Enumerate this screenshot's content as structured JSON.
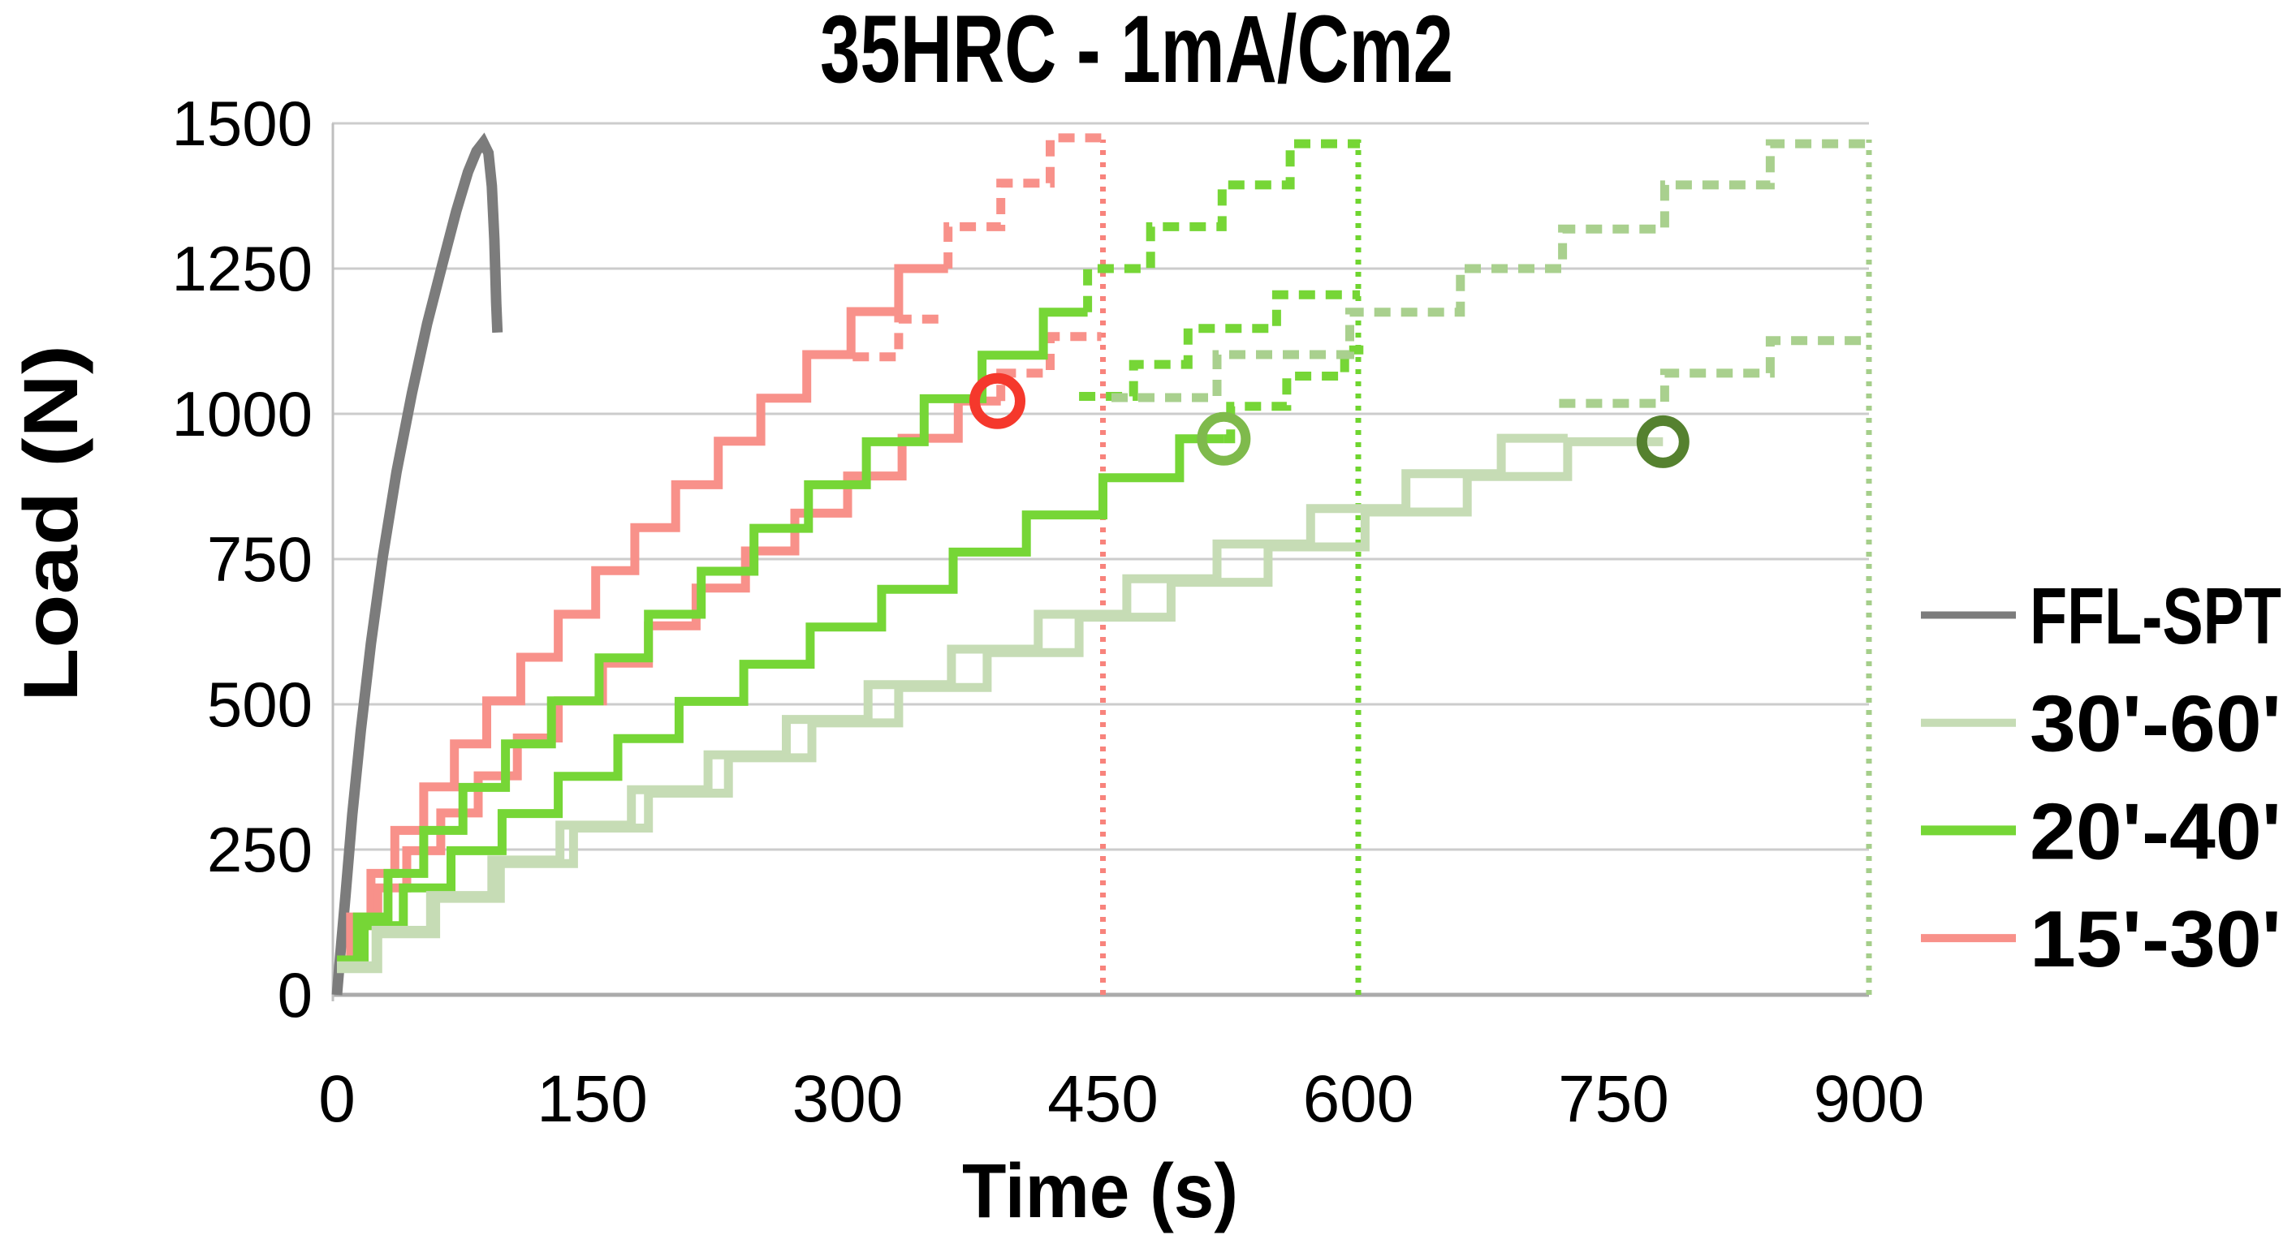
{
  "title": "35HRC - 1mA/Cm2",
  "chart_data": {
    "type": "line",
    "title": "35HRC - 1mA/Cm2",
    "xlabel": "Time (s)",
    "ylabel": "Load (N)",
    "xlim": [
      0,
      900
    ],
    "ylim": [
      0,
      1500
    ],
    "x_ticks": [
      0,
      150,
      300,
      450,
      600,
      750,
      900
    ],
    "y_ticks": [
      0,
      250,
      500,
      750,
      1000,
      1250,
      1500
    ],
    "grid": true,
    "legend_position": "right",
    "colors": {
      "ffl": "#7C7C7C",
      "salmon": "#F8918A",
      "vivid_green": "#76D636",
      "pale_green_solid": "#C6DCB5",
      "pale_green_dash": "#A9D08E",
      "red_circle": "#F5382C",
      "mid_green_circle": "#7FBA4C",
      "dark_green_circle": "#55812F",
      "red_dotted": "#F8837C",
      "green_dotted": "#6FD52F",
      "pale_dotted": "#A5CE8A",
      "gridline": "#CCCCCC",
      "axis": "#ABABAB"
    },
    "series": [
      {
        "name": "FFL-SPT",
        "mode": "line",
        "dash": false,
        "color": "#7C7C7C",
        "width": 13,
        "points": [
          [
            0,
            0
          ],
          [
            2,
            70
          ],
          [
            5,
            170
          ],
          [
            9,
            310
          ],
          [
            14,
            455
          ],
          [
            20,
            605
          ],
          [
            27,
            755
          ],
          [
            35,
            900
          ],
          [
            44,
            1035
          ],
          [
            53,
            1155
          ],
          [
            62,
            1258
          ],
          [
            70,
            1348
          ],
          [
            77,
            1416
          ],
          [
            82,
            1452
          ],
          [
            86,
            1467
          ],
          [
            89,
            1449
          ],
          [
            91,
            1392
          ],
          [
            92.5,
            1300
          ],
          [
            93.6,
            1190
          ],
          [
            94.3,
            1140
          ]
        ]
      },
      {
        "name": "15-30 test A solid",
        "mode": "steps",
        "dash": false,
        "color": "#F8918A",
        "width": 11,
        "end": 359,
        "points": [
          [
            0,
            60
          ],
          [
            8,
            134
          ],
          [
            20,
            209
          ],
          [
            34,
            283
          ],
          [
            51,
            358
          ],
          [
            69,
            432
          ],
          [
            88,
            506
          ],
          [
            108,
            581
          ],
          [
            130,
            655
          ],
          [
            152,
            730
          ],
          [
            175,
            804
          ],
          [
            199,
            878
          ],
          [
            224,
            953
          ],
          [
            249,
            1027
          ],
          [
            276,
            1102
          ],
          [
            302,
            1176
          ],
          [
            330,
            1250
          ]
        ]
      },
      {
        "name": "15-30 test A projection",
        "mode": "steps",
        "dash": true,
        "color": "#F8918A",
        "width": 11,
        "end": 449,
        "points": [
          [
            359,
            1250
          ],
          [
            359,
            1322
          ],
          [
            390,
            1397
          ],
          [
            419,
            1475
          ]
        ]
      },
      {
        "name": "15-30 test B solid",
        "mode": "steps",
        "dash": false,
        "color": "#F8918A",
        "width": 11,
        "end": 390,
        "points": [
          [
            0,
            55
          ],
          [
            9,
            119
          ],
          [
            24,
            184
          ],
          [
            41,
            248
          ],
          [
            61,
            313
          ],
          [
            83,
            377
          ],
          [
            106,
            442
          ],
          [
            130,
            506
          ],
          [
            156,
            571
          ],
          [
            183,
            635
          ],
          [
            211,
            700
          ],
          [
            240,
            764
          ],
          [
            269,
            829
          ],
          [
            300,
            893
          ],
          [
            332,
            958
          ],
          [
            365,
            1022
          ]
        ]
      },
      {
        "name": "15-30 test B projection",
        "mode": "steps",
        "dash": true,
        "color": "#F8918A",
        "width": 11,
        "end": 449,
        "points": [
          [
            390,
            1022
          ],
          [
            390,
            1070
          ],
          [
            419,
            1133
          ]
        ]
      },
      {
        "name": "15-30 protocol fragment",
        "mode": "steps",
        "dash": true,
        "color": "#F8918A",
        "width": 11,
        "end": 359,
        "points": [
          [
            303,
            1098
          ],
          [
            330,
            1163
          ]
        ]
      },
      {
        "name": "20-40 test A solid",
        "mode": "steps",
        "dash": false,
        "color": "#76D636",
        "width": 11,
        "end": 441,
        "points": [
          [
            0,
            60
          ],
          [
            12,
            134
          ],
          [
            30,
            209
          ],
          [
            51,
            283
          ],
          [
            74,
            357
          ],
          [
            99,
            432
          ],
          [
            126,
            506
          ],
          [
            154,
            580
          ],
          [
            183,
            655
          ],
          [
            214,
            729
          ],
          [
            245,
            803
          ],
          [
            277,
            878
          ],
          [
            311,
            952
          ],
          [
            345,
            1026
          ],
          [
            379,
            1101
          ],
          [
            415,
            1175
          ]
        ]
      },
      {
        "name": "20-40 test A projection",
        "mode": "steps",
        "dash": true,
        "color": "#76D636",
        "width": 11,
        "end": 601,
        "points": [
          [
            441,
            1175
          ],
          [
            441,
            1250
          ],
          [
            478,
            1322
          ],
          [
            520,
            1394
          ],
          [
            560,
            1465
          ]
        ]
      },
      {
        "name": "20-40 test B solid",
        "mode": "steps",
        "dash": false,
        "color": "#76D636",
        "width": 11,
        "end": 521,
        "points": [
          [
            0,
            55
          ],
          [
            16,
            119
          ],
          [
            39,
            184
          ],
          [
            67,
            248
          ],
          [
            97,
            312
          ],
          [
            130,
            376
          ],
          [
            165,
            441
          ],
          [
            201,
            505
          ],
          [
            239,
            569
          ],
          [
            278,
            633
          ],
          [
            320,
            698
          ],
          [
            362,
            762
          ],
          [
            405,
            826
          ],
          [
            450,
            890
          ],
          [
            495,
            957
          ]
        ]
      },
      {
        "name": "20-40 test B projection",
        "mode": "steps",
        "dash": true,
        "color": "#76D636",
        "width": 11,
        "end": 603,
        "points": [
          [
            521,
            957
          ],
          [
            525,
            1013
          ],
          [
            558,
            1065
          ],
          [
            592,
            1110
          ]
        ]
      },
      {
        "name": "20-40 protocol fragment",
        "mode": "steps",
        "dash": true,
        "color": "#76D636",
        "width": 11,
        "end": 601,
        "points": [
          [
            436,
            1030
          ],
          [
            468,
            1085
          ],
          [
            500,
            1147
          ],
          [
            552,
            1205
          ]
        ]
      },
      {
        "name": "30-60 test A solid",
        "mode": "steps",
        "dash": false,
        "color": "#C6DCB5",
        "width": 11,
        "end": 723,
        "points": [
          [
            0,
            50
          ],
          [
            23,
            111
          ],
          [
            55,
            171
          ],
          [
            91,
            232
          ],
          [
            131,
            292
          ],
          [
            173,
            353
          ],
          [
            218,
            413
          ],
          [
            264,
            474
          ],
          [
            312,
            534
          ],
          [
            361,
            595
          ],
          [
            412,
            655
          ],
          [
            464,
            716
          ],
          [
            517,
            776
          ],
          [
            572,
            837
          ],
          [
            628,
            897
          ],
          [
            684,
            958
          ]
        ]
      },
      {
        "name": "30-60 test A projection",
        "mode": "steps",
        "dash": true,
        "color": "#A9D08E",
        "width": 11,
        "end": 898,
        "points": [
          [
            718,
            1018
          ],
          [
            780,
            1070
          ],
          [
            842,
            1126
          ]
        ]
      },
      {
        "name": "30-60 test B solid",
        "mode": "steps",
        "dash": false,
        "color": "#C6DCB5",
        "width": 11,
        "end": 779,
        "points": [
          [
            0,
            45
          ],
          [
            24,
            105
          ],
          [
            58,
            166
          ],
          [
            96,
            226
          ],
          [
            139,
            287
          ],
          [
            183,
            347
          ],
          [
            230,
            408
          ],
          [
            279,
            468
          ],
          [
            330,
            529
          ],
          [
            382,
            589
          ],
          [
            436,
            650
          ],
          [
            490,
            710
          ],
          [
            547,
            771
          ],
          [
            604,
            831
          ],
          [
            664,
            892
          ],
          [
            723,
            952
          ]
        ]
      },
      {
        "name": "30-60 protocol",
        "mode": "steps",
        "dash": true,
        "color": "#A9D08E",
        "width": 11,
        "end": 900,
        "points": [
          [
            455,
            1028
          ],
          [
            517,
            1102
          ],
          [
            595,
            1175
          ],
          [
            660,
            1250
          ],
          [
            720,
            1318
          ],
          [
            780,
            1394
          ],
          [
            842,
            1465
          ]
        ]
      }
    ],
    "markers": [
      {
        "name": "failure-circle-15-30",
        "t": 388,
        "load": 1022,
        "color": "#F5382C",
        "r": 28,
        "sw": 13
      },
      {
        "name": "failure-circle-20-40",
        "t": 521,
        "load": 957,
        "color": "#7FBA4C",
        "r": 27,
        "sw": 12
      },
      {
        "name": "failure-circle-30-60",
        "t": 779,
        "load": 952,
        "color": "#55812F",
        "r": 26,
        "sw": 13
      }
    ],
    "vlines": [
      {
        "name": "protocol-end-15-30",
        "t": 450,
        "color": "#F8837C"
      },
      {
        "name": "protocol-end-20-40",
        "t": 600,
        "color": "#6FD52F"
      },
      {
        "name": "protocol-end-30-60",
        "t": 900,
        "color": "#A5CE8A"
      }
    ],
    "legend": [
      {
        "label": "FFL-SPT",
        "color": "#7C7C7C",
        "width": 9
      },
      {
        "label": "30'-60'",
        "color": "#C6DCB5",
        "width": 10
      },
      {
        "label": "20'-40'",
        "color": "#76D636",
        "width": 12
      },
      {
        "label": "15'-30'",
        "color": "#F8918A",
        "width": 10
      }
    ]
  }
}
